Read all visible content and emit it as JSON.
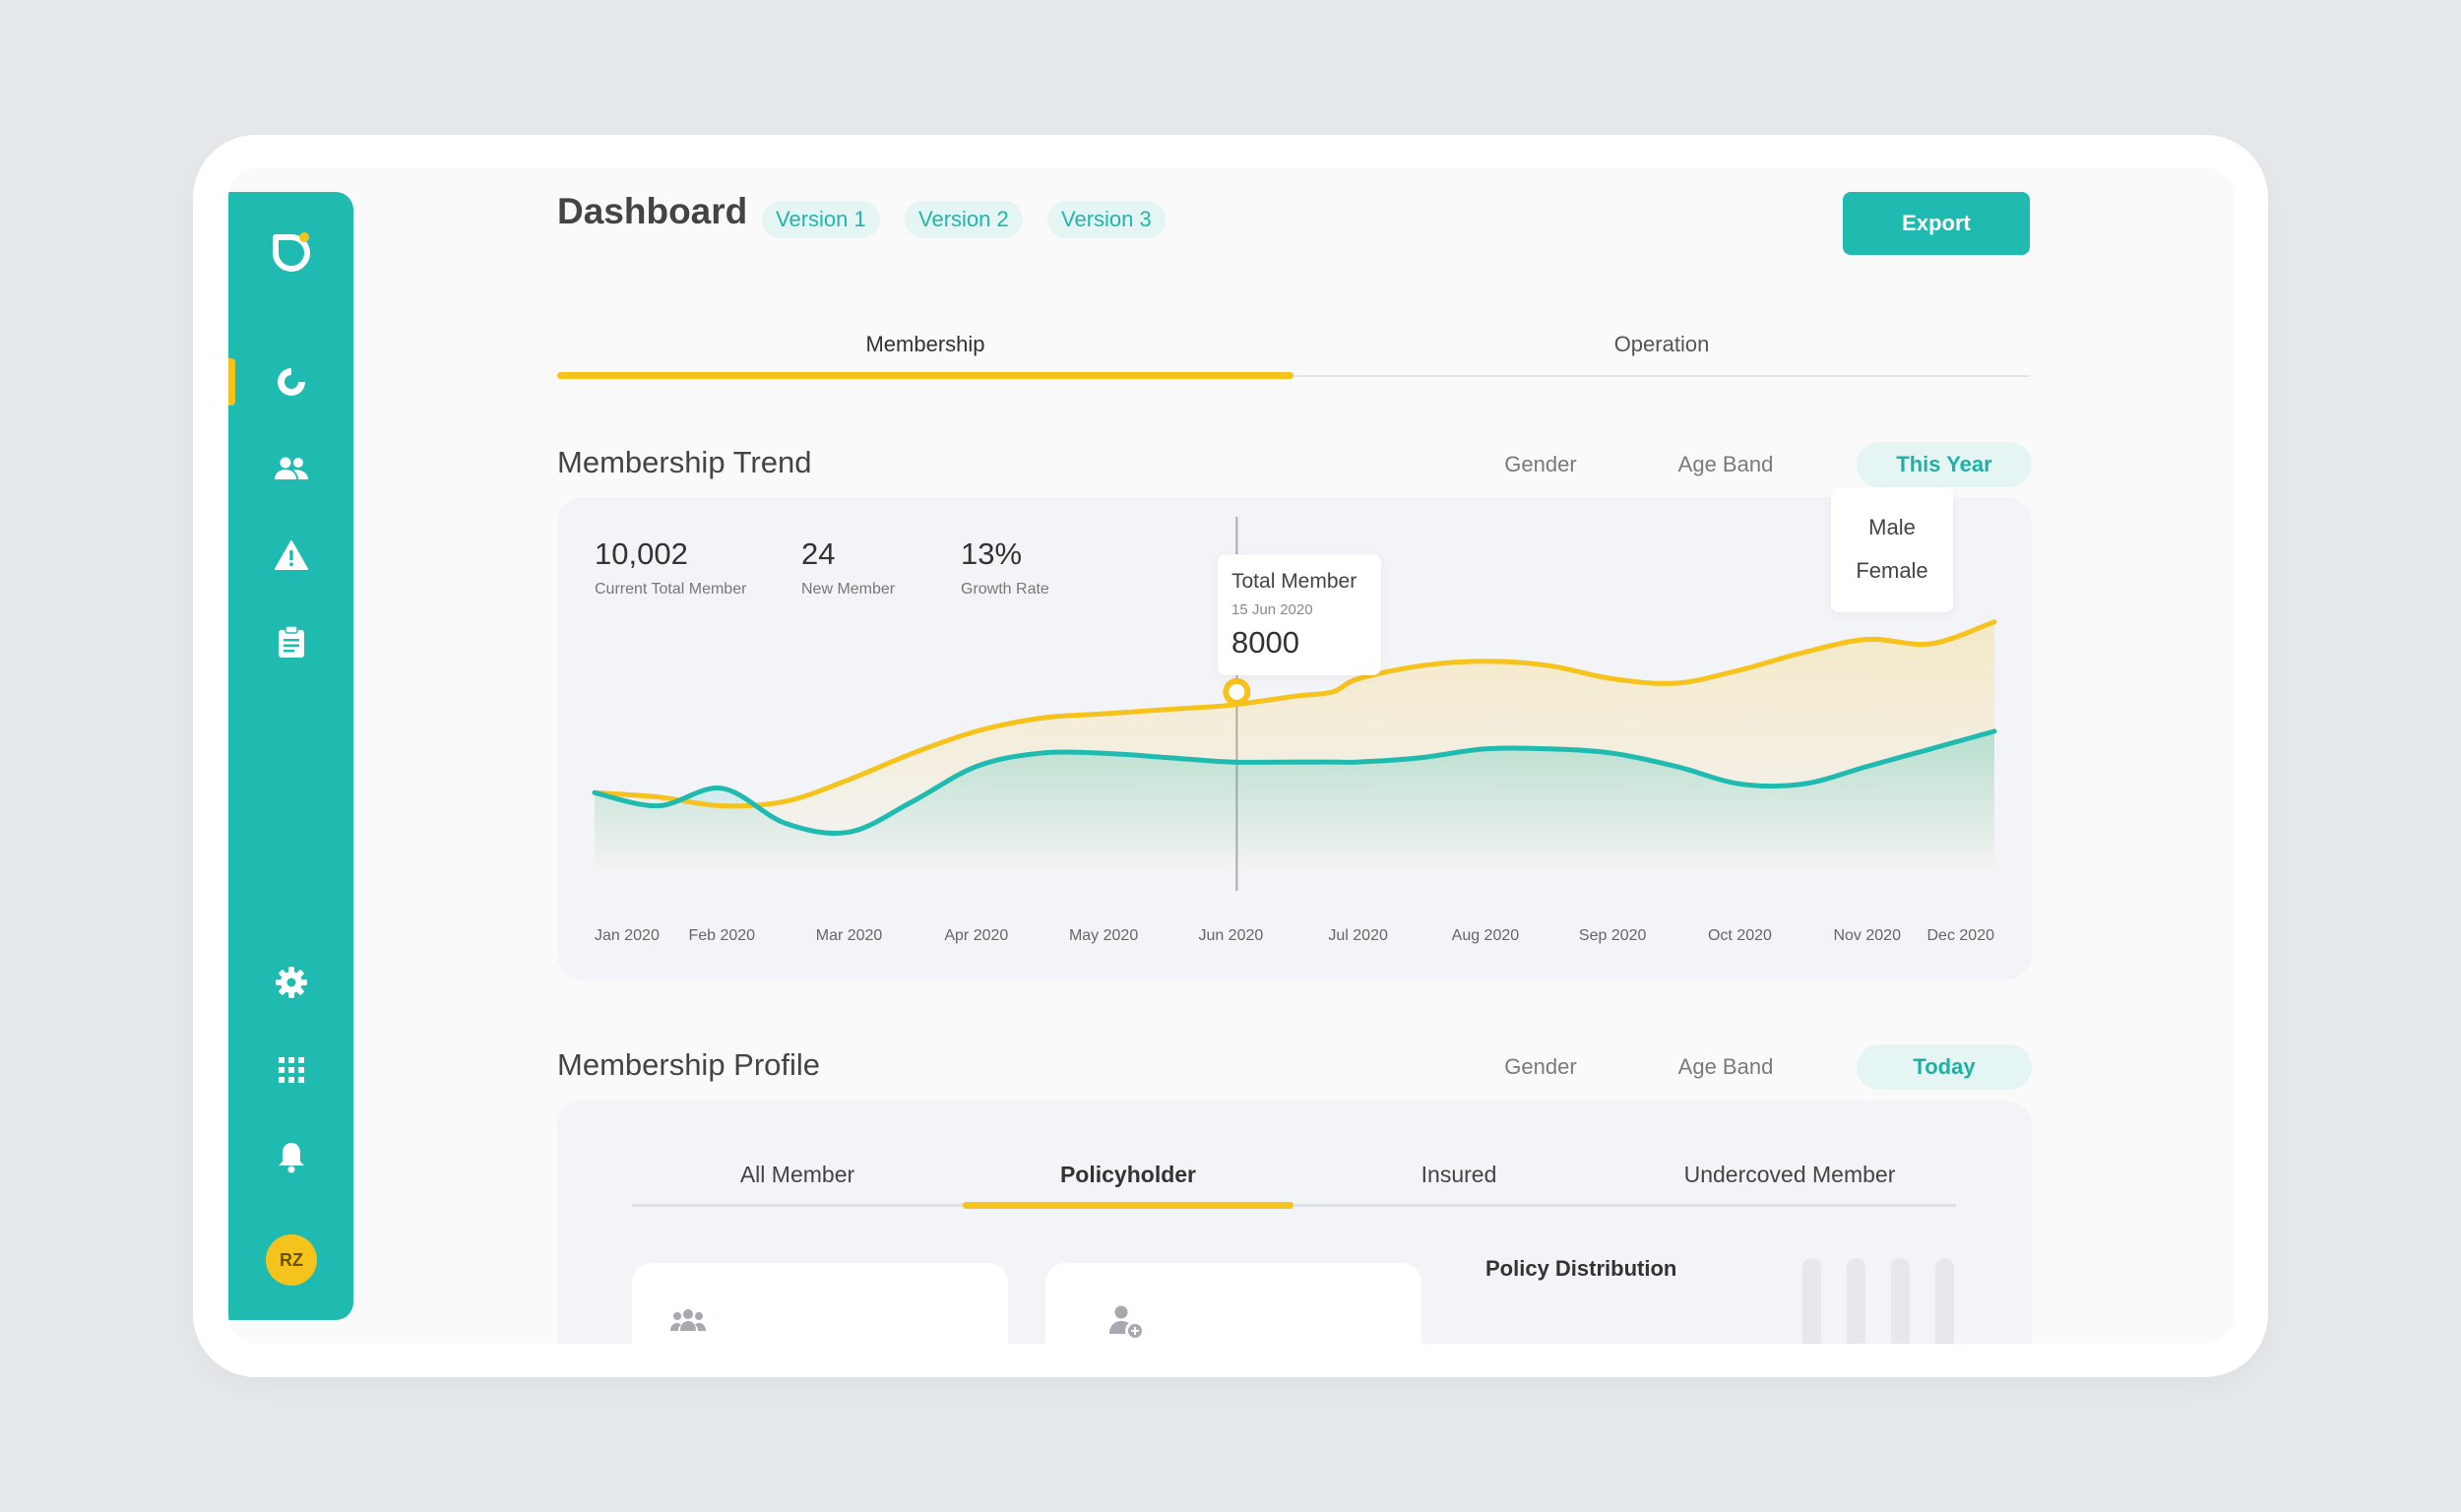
{
  "header": {
    "title": "Dashboard",
    "versions": [
      "Version 1",
      "Version 2",
      "Version 3"
    ],
    "export_label": "Export"
  },
  "sidebar": {
    "avatar_initials": "RZ",
    "icons": [
      "logo-icon",
      "dashboard-icon",
      "members-icon",
      "alert-icon",
      "clipboard-icon",
      "gear-icon",
      "apps-grid-icon",
      "bell-icon"
    ],
    "active_index": 0,
    "colors": {
      "background": "#1fbab0",
      "accent": "#f6c21c"
    }
  },
  "tabs": {
    "items": [
      "Membership",
      "Operation"
    ],
    "active": "Membership"
  },
  "trend": {
    "title": "Membership Trend",
    "filters": [
      "Gender",
      "Age Band",
      "This Year"
    ],
    "active_filter": "This Year",
    "dropdown_options": [
      "Male",
      "Female"
    ],
    "kpis": [
      {
        "value": "10,002",
        "label": "Current Total Member"
      },
      {
        "value": "24",
        "label": "New Member"
      },
      {
        "value": "13%",
        "label": "Growth Rate"
      }
    ],
    "tooltip": {
      "title": "Total Member",
      "date": "15 Jun 2020",
      "value": "8000"
    }
  },
  "chart_data": {
    "type": "area",
    "categories": [
      "Jan 2020",
      "Feb 2020",
      "Mar 2020",
      "Apr 2020",
      "May 2020",
      "Jun 2020",
      "Jul 2020",
      "Aug 2020",
      "Sep 2020",
      "Oct 2020",
      "Nov 2020",
      "Dec 2020"
    ],
    "x": [
      0,
      0.5,
      1,
      1.5,
      2,
      2.5,
      3,
      3.5,
      4,
      4.5,
      5,
      5.5,
      5.8,
      6,
      6.5,
      7,
      7.5,
      8,
      8.5,
      9,
      9.5,
      10,
      10.5,
      11
    ],
    "series": [
      {
        "color": "#f6c21c",
        "values": [
          65,
          64,
          62,
          63,
          68,
          74,
          79,
          82,
          83,
          84,
          85,
          87,
          88,
          91,
          94,
          95,
          94,
          91,
          90,
          93,
          97,
          100,
          99,
          104
        ]
      },
      {
        "color": "#1fbab0",
        "values": [
          65,
          62,
          66,
          58,
          56,
          63,
          71,
          74,
          74,
          73,
          72,
          72,
          72,
          72,
          73,
          75,
          75,
          74,
          71,
          67,
          67,
          71,
          75,
          79
        ]
      }
    ],
    "highlight": {
      "category": "Jun 2020",
      "value": 8000
    },
    "grid": false,
    "legend": "none"
  },
  "profile": {
    "title": "Membership Profile",
    "filters": [
      "Gender",
      "Age Band",
      "Today"
    ],
    "active_filter": "Today",
    "sub_tabs": [
      "All Member",
      "Policyholder",
      "Insured",
      "Undercoved Member"
    ],
    "active_sub_tab": "Policyholder",
    "distribution_title": "Policy Distribution"
  }
}
